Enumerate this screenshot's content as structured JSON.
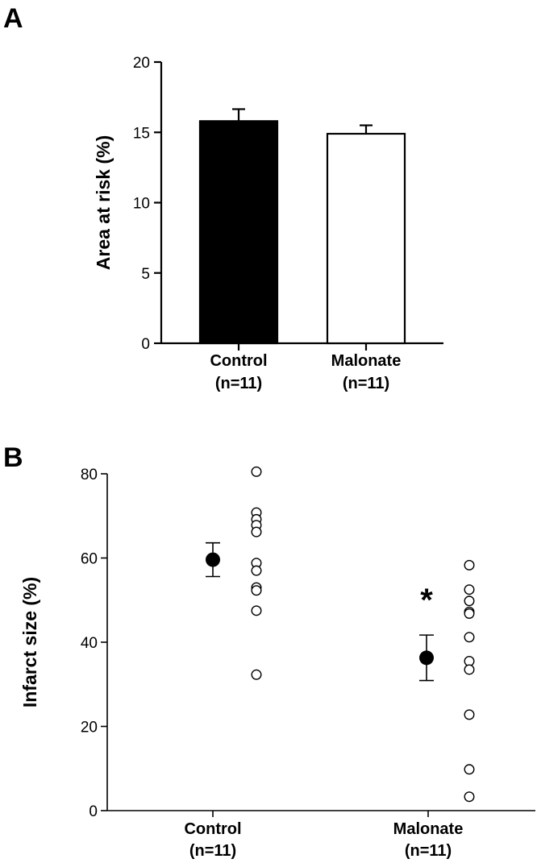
{
  "chart_data": [
    {
      "panel": "A",
      "type": "bar",
      "ylabel": "Area at risk (%)",
      "ylim": [
        0,
        20
      ],
      "yticks": [
        "0",
        "5",
        "10",
        "15",
        "20"
      ],
      "categories": [
        "Control",
        "Malonate"
      ],
      "category_n": [
        "(n=11)",
        "(n=11)"
      ],
      "values": [
        15.8,
        14.9
      ],
      "errors": [
        0.85,
        0.6
      ],
      "fills": [
        "#000000",
        "#ffffff"
      ],
      "grid": false
    },
    {
      "panel": "B",
      "type": "scatter",
      "ylabel": "Infarct size (%)",
      "ylim": [
        0,
        80
      ],
      "yticks": [
        "0",
        "20",
        "40",
        "60",
        "80"
      ],
      "categories": [
        "Control",
        "Malonate"
      ],
      "category_n": [
        "(n=11)",
        "(n=11)"
      ],
      "means": [
        59.6,
        36.3
      ],
      "sem": [
        4.0,
        5.4
      ],
      "individual": [
        [
          80.5,
          70.8,
          69.2,
          67.8,
          66.2,
          58.8,
          57.0,
          53.0,
          52.3,
          47.5,
          32.3
        ],
        [
          58.3,
          52.5,
          49.8,
          47.2,
          46.8,
          41.2,
          35.5,
          33.5,
          22.8,
          9.8,
          3.3
        ]
      ],
      "significance": [
        "",
        "*"
      ],
      "grid": false
    }
  ]
}
